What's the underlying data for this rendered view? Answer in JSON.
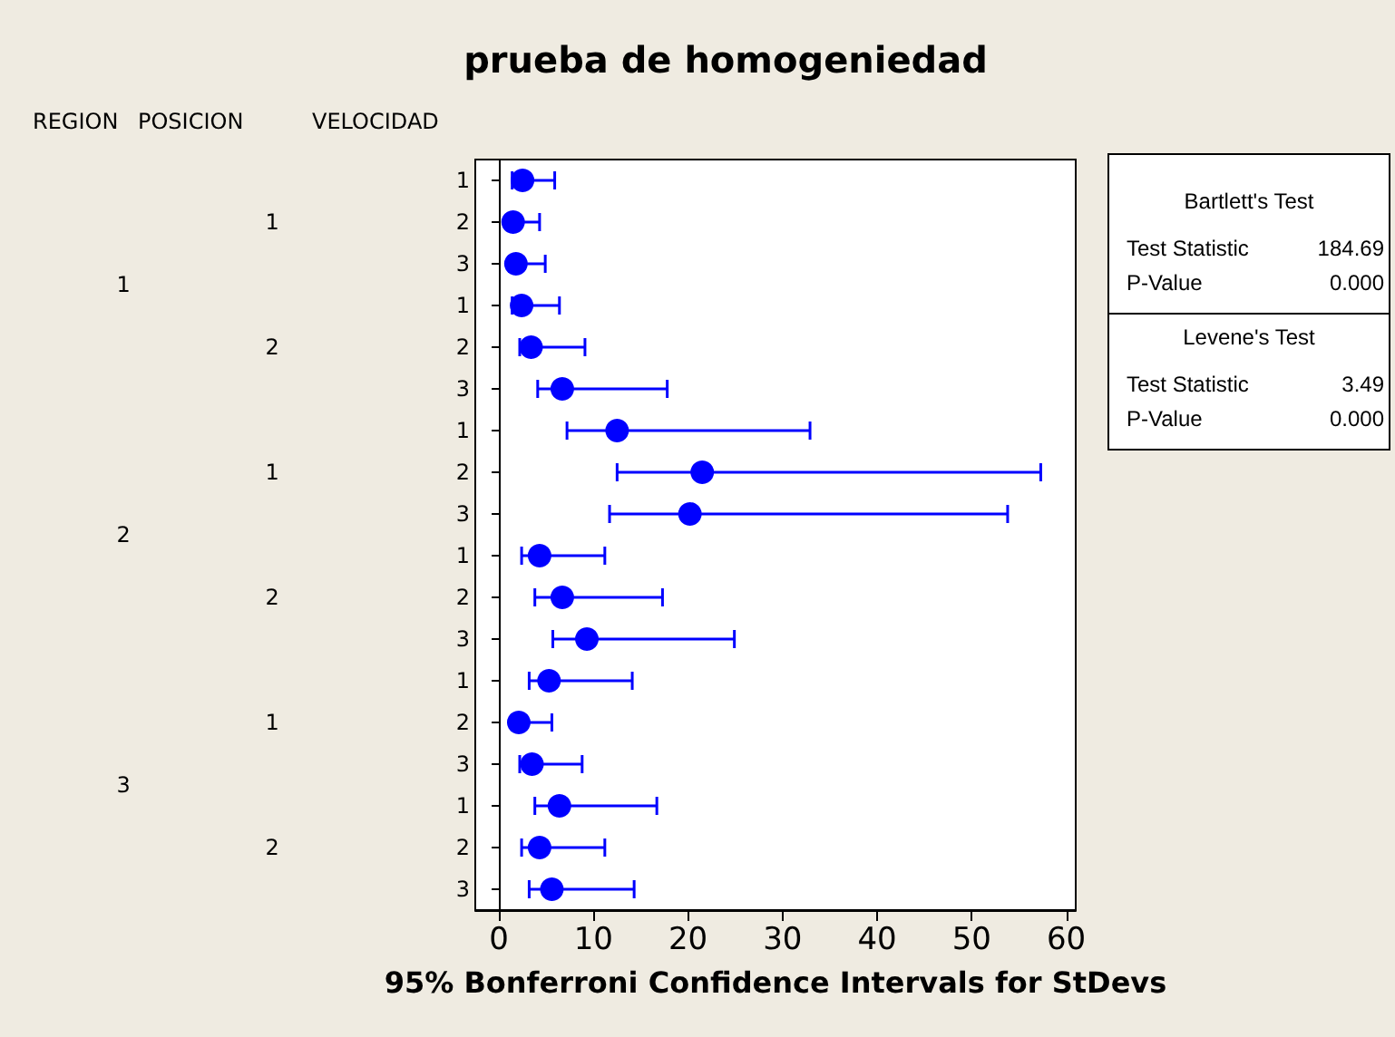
{
  "chart_data": {
    "type": "scatter",
    "orientation": "horizontal",
    "title": "prueba de homogeniedad",
    "xlabel": "95% Bonferroni Confidence Intervals for StDevs",
    "categories": [
      "1",
      "2",
      "3",
      "1",
      "2",
      "3",
      "1",
      "2",
      "3",
      "1",
      "2",
      "3",
      "1",
      "2",
      "3",
      "1",
      "2",
      "3"
    ],
    "series": [
      {
        "color": "#0000ff",
        "values": [
          2.5,
          1.5,
          1.8,
          2.4,
          3.4,
          6.7,
          12.5,
          21.5,
          20.2,
          4.3,
          6.7,
          9.3,
          5.3,
          2.1,
          3.5,
          6.4,
          4.3,
          5.6
        ],
        "errors": [
          [
            1.4,
            5.9
          ],
          [
            1.5,
            4.3
          ],
          [
            1.1,
            4.9
          ],
          [
            1.4,
            6.4
          ],
          [
            2.2,
            9.1
          ],
          [
            4.1,
            17.8
          ],
          [
            7.2,
            32.9
          ],
          [
            12.5,
            57.3
          ],
          [
            11.7,
            53.8
          ],
          [
            2.4,
            11.2
          ],
          [
            3.8,
            17.3
          ],
          [
            5.7,
            24.9
          ],
          [
            3.2,
            14.1
          ],
          [
            1.4,
            5.6
          ],
          [
            2.2,
            8.8
          ],
          [
            3.8,
            16.7
          ],
          [
            2.4,
            11.2
          ],
          [
            3.2,
            14.3
          ]
        ]
      }
    ],
    "xlim": [
      -2.5,
      61
    ],
    "xticks": [
      0,
      10,
      20,
      30,
      40,
      50,
      60
    ],
    "grid": false,
    "marker": "circle",
    "annotations": [
      "REGION",
      "POSICION",
      "VELOCIDAD",
      "1",
      "2",
      "1",
      "2",
      "1",
      "2",
      "1",
      "2",
      "3",
      "Bartlett's Test",
      "Test Statistic",
      "184.69",
      "P-Value",
      "0.000",
      "Levene's Test",
      "Test Statistic",
      "3.49",
      "P-Value",
      "0.000"
    ]
  }
}
